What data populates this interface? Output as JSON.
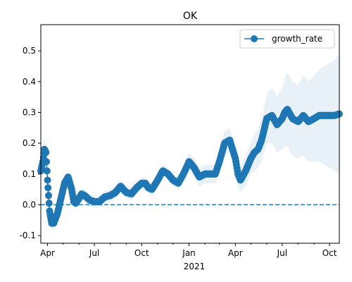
{
  "chart_data": {
    "type": "line",
    "title": "OK",
    "xlabel": "",
    "ylabel": "",
    "x_tick_labels": [
      "Apr",
      "Jul",
      "Oct",
      "Jan",
      "Apr",
      "Jul",
      "Oct"
    ],
    "x_year_label": "2021",
    "y_ticks": [
      -0.1,
      0.0,
      0.1,
      0.2,
      0.3,
      0.4,
      0.5
    ],
    "ylim": [
      -0.125,
      0.585
    ],
    "xlim": [
      "2020-03-19",
      "2021-10-20"
    ],
    "reference_line": 0.0,
    "legend": {
      "placement": "top-right",
      "entries": [
        "growth_rate"
      ]
    },
    "grid": false,
    "colors": {
      "line": "#1f77b4",
      "band": "#1f77b4",
      "reference": "#1f77b4"
    },
    "series": [
      {
        "name": "growth_rate",
        "x": [
          "2020-03-19",
          "2020-03-23",
          "2020-03-26",
          "2020-03-29",
          "2020-04-01",
          "2020-04-05",
          "2020-04-09",
          "2020-04-13",
          "2020-04-20",
          "2020-04-27",
          "2020-05-04",
          "2020-05-11",
          "2020-05-18",
          "2020-05-22",
          "2020-05-26",
          "2020-06-01",
          "2020-06-06",
          "2020-06-12",
          "2020-06-22",
          "2020-07-01",
          "2020-07-11",
          "2020-07-21",
          "2020-08-01",
          "2020-08-11",
          "2020-08-21",
          "2020-09-01",
          "2020-09-11",
          "2020-09-21",
          "2020-10-01",
          "2020-10-08",
          "2020-10-14",
          "2020-10-21",
          "2020-11-01",
          "2020-11-11",
          "2020-11-21",
          "2020-12-01",
          "2020-12-11",
          "2020-12-21",
          "2021-01-01",
          "2021-01-11",
          "2021-01-21",
          "2021-02-01",
          "2021-02-11",
          "2021-02-21",
          "2021-03-01",
          "2021-03-11",
          "2021-03-21",
          "2021-04-01",
          "2021-04-06",
          "2021-04-11",
          "2021-04-21",
          "2021-05-01",
          "2021-05-08",
          "2021-05-15",
          "2021-05-22",
          "2021-06-01",
          "2021-06-11",
          "2021-06-21",
          "2021-07-01",
          "2021-07-06",
          "2021-07-11",
          "2021-07-21",
          "2021-08-01",
          "2021-08-11",
          "2021-08-21",
          "2021-09-01",
          "2021-09-11",
          "2021-09-21",
          "2021-10-01",
          "2021-10-11",
          "2021-10-20"
        ],
        "values": [
          0.11,
          0.14,
          0.18,
          0.17,
          0.08,
          -0.02,
          -0.06,
          -0.06,
          -0.03,
          0.02,
          0.07,
          0.09,
          0.05,
          0.01,
          0.005,
          0.02,
          0.035,
          0.03,
          0.015,
          0.01,
          0.01,
          0.025,
          0.03,
          0.04,
          0.06,
          0.04,
          0.035,
          0.055,
          0.07,
          0.07,
          0.055,
          0.05,
          0.08,
          0.11,
          0.1,
          0.08,
          0.07,
          0.1,
          0.14,
          0.12,
          0.09,
          0.1,
          0.1,
          0.1,
          0.14,
          0.2,
          0.21,
          0.15,
          0.1,
          0.08,
          0.11,
          0.15,
          0.17,
          0.18,
          0.21,
          0.28,
          0.29,
          0.26,
          0.28,
          0.3,
          0.31,
          0.28,
          0.27,
          0.29,
          0.27,
          0.28,
          0.29,
          0.29,
          0.29,
          0.29,
          0.295
        ],
        "lower": [
          0.08,
          0.11,
          0.14,
          0.14,
          0.06,
          -0.04,
          -0.08,
          -0.08,
          -0.05,
          0.0,
          0.05,
          0.07,
          0.03,
          -0.01,
          -0.015,
          0.0,
          0.015,
          0.01,
          -0.005,
          -0.01,
          -0.01,
          0.005,
          0.01,
          0.02,
          0.04,
          0.02,
          0.015,
          0.035,
          0.05,
          0.05,
          0.035,
          0.03,
          0.06,
          0.09,
          0.08,
          0.06,
          0.05,
          0.08,
          0.11,
          0.09,
          0.06,
          0.07,
          0.07,
          0.07,
          0.1,
          0.16,
          0.17,
          0.11,
          0.06,
          0.04,
          0.06,
          0.1,
          0.11,
          0.12,
          0.14,
          0.2,
          0.2,
          0.17,
          0.18,
          0.19,
          0.19,
          0.16,
          0.15,
          0.16,
          0.14,
          0.14,
          0.14,
          0.13,
          0.12,
          0.11,
          0.1
        ],
        "upper": [
          0.14,
          0.17,
          0.22,
          0.2,
          0.1,
          0.0,
          -0.04,
          -0.04,
          -0.01,
          0.04,
          0.09,
          0.11,
          0.07,
          0.03,
          0.025,
          0.04,
          0.055,
          0.05,
          0.035,
          0.03,
          0.03,
          0.045,
          0.05,
          0.06,
          0.08,
          0.06,
          0.055,
          0.075,
          0.09,
          0.09,
          0.075,
          0.07,
          0.1,
          0.13,
          0.12,
          0.1,
          0.09,
          0.12,
          0.17,
          0.15,
          0.12,
          0.13,
          0.13,
          0.13,
          0.18,
          0.24,
          0.25,
          0.19,
          0.14,
          0.12,
          0.16,
          0.2,
          0.23,
          0.25,
          0.28,
          0.36,
          0.38,
          0.35,
          0.38,
          0.41,
          0.43,
          0.4,
          0.39,
          0.42,
          0.4,
          0.42,
          0.44,
          0.45,
          0.46,
          0.47,
          0.49
        ]
      }
    ]
  }
}
